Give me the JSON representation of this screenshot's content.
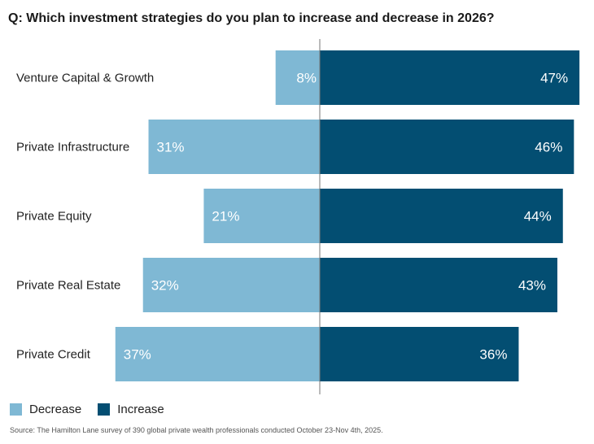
{
  "chart_data": {
    "type": "bar",
    "orientation": "horizontal-diverging",
    "title": "Q: Which investment strategies do you plan to increase and decrease in 2026?",
    "categories": [
      "Venture Capital & Growth",
      "Private Infrastructure",
      "Private Equity",
      "Private Real Estate",
      "Private Credit"
    ],
    "series": [
      {
        "name": "Decrease",
        "values": [
          8,
          31,
          21,
          32,
          37
        ],
        "color": "#7fb8d4",
        "labels": [
          "8%",
          "31%",
          "21%",
          "32%",
          "37%"
        ]
      },
      {
        "name": "Increase",
        "values": [
          47,
          46,
          44,
          43,
          36
        ],
        "color": "#034e72",
        "labels": [
          "47%",
          "46%",
          "44%",
          "43%",
          "36%"
        ]
      }
    ],
    "xlabel": "",
    "ylabel": "",
    "unit": "%",
    "legend_position": "bottom-left",
    "grid": false,
    "source": "Source: The Hamilton Lane survey of 390 global private wealth professionals conducted October 23-Nov 4th, 2025."
  }
}
